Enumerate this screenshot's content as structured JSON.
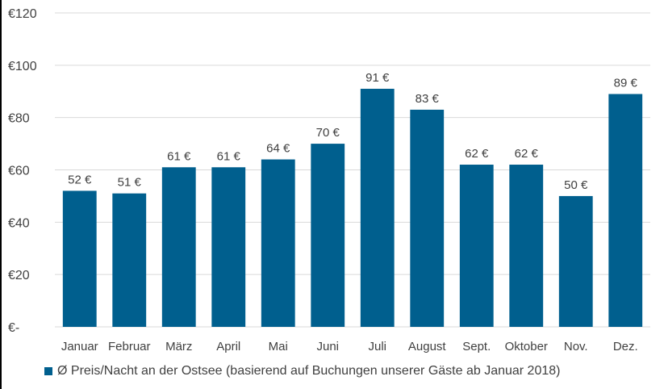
{
  "chart_data": {
    "type": "bar",
    "categories": [
      "Januar",
      "Februar",
      "März",
      "April",
      "Mai",
      "Juni",
      "Juli",
      "August",
      "Sept.",
      "Oktober",
      "Nov.",
      "Dez."
    ],
    "series": [
      {
        "name": "Ø Preis/Nacht an der Ostsee (basierend auf Buchungen unserer Gäste ab Januar 2018)",
        "values": [
          52,
          51,
          61,
          61,
          64,
          70,
          91,
          83,
          62,
          62,
          50,
          89
        ],
        "data_labels": [
          "52 €",
          "51 €",
          "61 €",
          "61 €",
          "64 €",
          "70 €",
          "91 €",
          "83 €",
          "62 €",
          "62 €",
          "50 €",
          "89 €"
        ]
      }
    ],
    "ylim": [
      0,
      120
    ],
    "yticks": [
      0,
      20,
      40,
      60,
      80,
      100,
      120
    ],
    "ytick_labels": [
      "€-",
      "€20",
      "€40",
      "€60",
      "€80",
      "€100",
      "€120"
    ],
    "grid": true,
    "legend_position": "bottom",
    "colors": {
      "bar": "#005f8e",
      "grid": "#d9d9d9",
      "text": "#404040"
    }
  }
}
